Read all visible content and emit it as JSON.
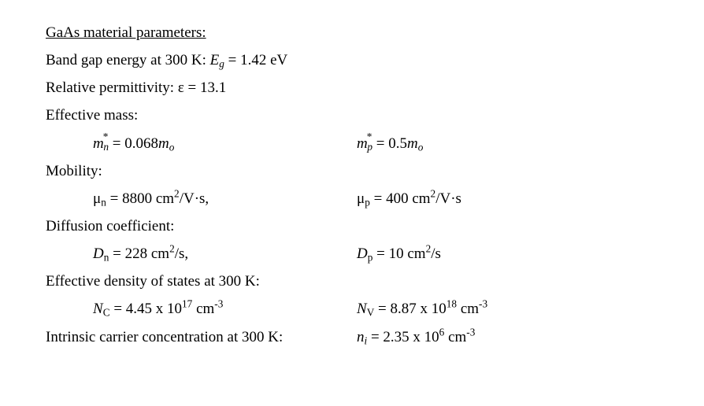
{
  "background_color": "#ffffff",
  "text_color": "#000000",
  "font_family": "Times New Roman",
  "title_font_size_pt": 14,
  "body_font_size_pt": 14,
  "title": "GaAs material parameters:",
  "band_gap": {
    "label_prefix": "Band gap energy at 300 K: ",
    "symbol_main": "E",
    "symbol_sub": "g",
    "equals": " = ",
    "value": "1.42 eV"
  },
  "permittivity": {
    "label_prefix": "Relative permittivity: ",
    "symbol": "ε",
    "equals": " = ",
    "value": "13.1"
  },
  "effective_mass": {
    "label": "Effective mass:",
    "n": {
      "sym": "m",
      "star": "*",
      "sub": "n",
      "eq": " = ",
      "val": "0.068",
      "o_sym": "m",
      "o_sub": "o"
    },
    "p": {
      "sym": "m",
      "star": "*",
      "sub": "p",
      "eq": " = ",
      "val": "0.5",
      "o_sym": "m",
      "o_sub": "o"
    }
  },
  "mobility": {
    "label": "Mobility:",
    "n": {
      "sym": "μ",
      "sub": "n",
      "eq": " = ",
      "val": "8800 cm",
      "unit_sup": "2",
      "unit_tail": "/V·s,"
    },
    "p": {
      "sym": "μ",
      "sub": "p",
      "eq": " = ",
      "val": "400 cm",
      "unit_sup": "2",
      "unit_tail": "/V·s"
    }
  },
  "diffusion": {
    "label": "Diffusion coefficient:",
    "n": {
      "sym": "D",
      "sub": "n",
      "eq": " = ",
      "val": "228 cm",
      "unit_sup": "2",
      "unit_tail": "/s,"
    },
    "p": {
      "sym": "D",
      "sub": "p",
      "eq": " = ",
      "val": "10 cm",
      "unit_sup": "2",
      "unit_tail": "/s"
    }
  },
  "dos": {
    "label": "Effective density of states at 300 K:",
    "nc": {
      "sym": "N",
      "sub": "C",
      "eq": " = ",
      "mant": "4.45 x 10",
      "exp": "17",
      "unit_pre": " cm",
      "unit_exp": "-3"
    },
    "nv": {
      "sym": "N",
      "sub": "V",
      "eq": " = ",
      "mant": "8.87 x 10",
      "exp": "18",
      "unit_pre": " cm",
      "unit_exp": "-3"
    }
  },
  "intrinsic": {
    "label": "Intrinsic carrier concentration at 300 K:",
    "ni": {
      "sym": "n",
      "sub": "i",
      "eq": " = ",
      "mant": "2.35 x 10",
      "exp": "6",
      "unit_pre": " cm",
      "unit_exp": "-3"
    }
  }
}
